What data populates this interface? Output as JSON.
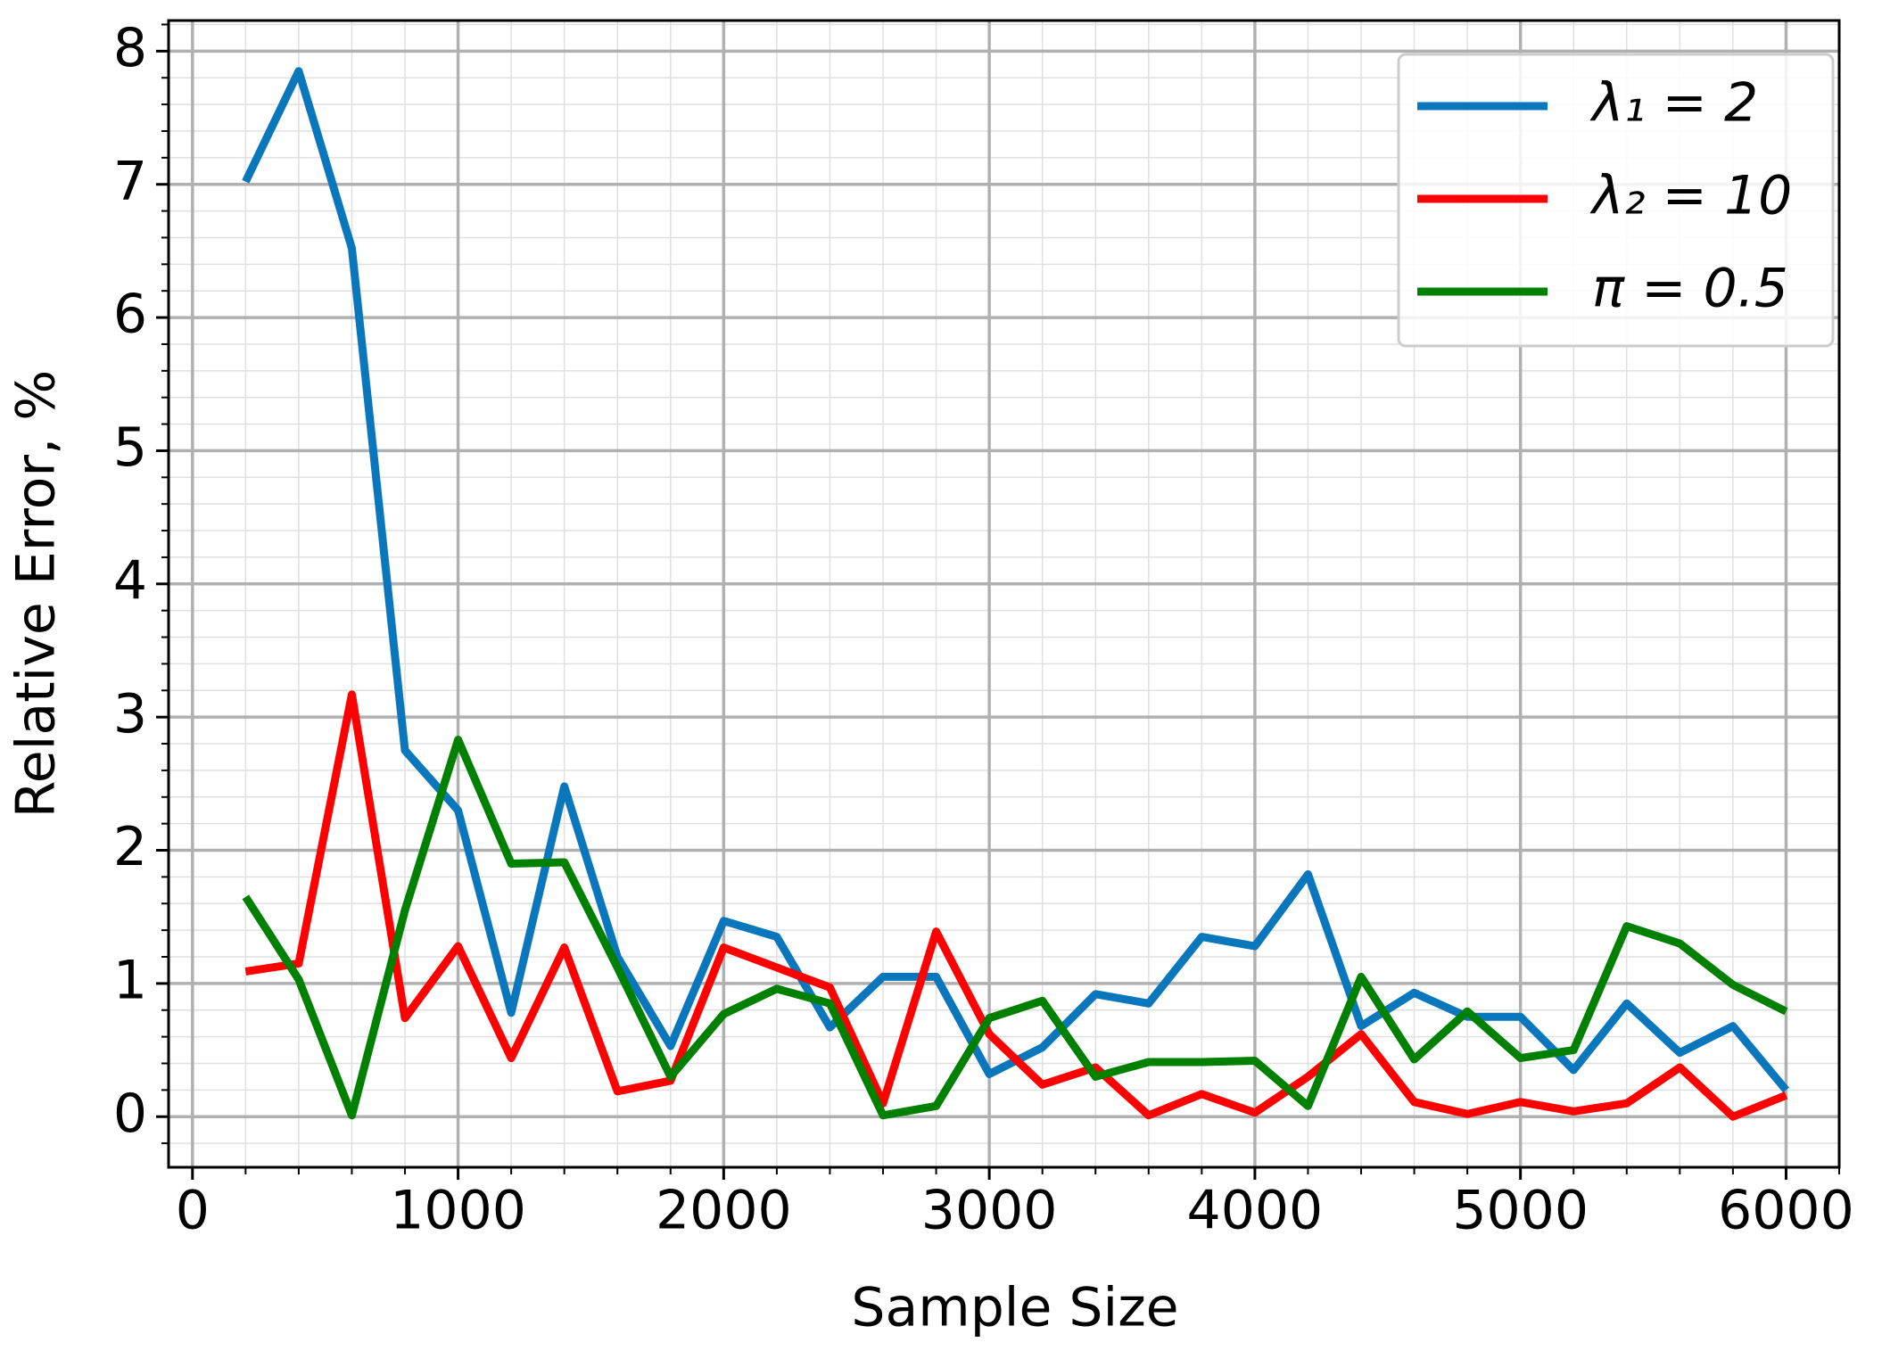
{
  "chart_data": {
    "type": "line",
    "xlabel": "Sample Size",
    "ylabel": "Relative Error, %",
    "x": [
      200,
      400,
      600,
      800,
      1000,
      1200,
      1400,
      1600,
      1800,
      2000,
      2200,
      2400,
      2600,
      2800,
      3000,
      3200,
      3400,
      3600,
      3800,
      4000,
      4200,
      4400,
      4600,
      4800,
      5000,
      5200,
      5400,
      5600,
      5800,
      6000
    ],
    "series": [
      {
        "name": "λ₁ = 2",
        "color": "#0a77bd",
        "values": [
          7.02,
          7.85,
          6.52,
          2.75,
          2.3,
          0.78,
          2.48,
          1.2,
          0.53,
          1.47,
          1.35,
          0.67,
          1.05,
          1.05,
          0.32,
          0.52,
          0.92,
          0.85,
          1.35,
          1.28,
          1.82,
          0.68,
          0.93,
          0.75,
          0.75,
          0.35,
          0.85,
          0.48,
          0.68,
          0.2
        ]
      },
      {
        "name": "λ₂ = 10",
        "color": "#ff0000",
        "values": [
          1.09,
          1.15,
          3.17,
          0.74,
          1.28,
          0.44,
          1.27,
          0.19,
          0.27,
          1.27,
          1.12,
          0.97,
          0.1,
          1.39,
          0.62,
          0.24,
          0.37,
          0.01,
          0.17,
          0.03,
          0.3,
          0.62,
          0.11,
          0.02,
          0.11,
          0.04,
          0.1,
          0.37,
          0.0,
          0.16
        ]
      },
      {
        "name": "π = 0.5",
        "color": "#008000",
        "values": [
          1.65,
          1.03,
          0.01,
          1.55,
          2.83,
          1.9,
          1.91,
          1.12,
          0.3,
          0.77,
          0.96,
          0.85,
          0.01,
          0.08,
          0.74,
          0.87,
          0.3,
          0.41,
          0.41,
          0.42,
          0.08,
          1.05,
          0.43,
          0.79,
          0.44,
          0.5,
          1.43,
          1.3,
          0.99,
          0.79
        ]
      }
    ],
    "xlim": [
      -90,
      6200
    ],
    "ylim": [
      -0.38,
      8.23
    ],
    "xticks": [
      0,
      1000,
      2000,
      3000,
      4000,
      5000,
      6000
    ],
    "yticks": [
      0,
      1,
      2,
      3,
      4,
      5,
      6,
      7,
      8
    ],
    "xminorticks": [
      200,
      400,
      600,
      800,
      1200,
      1400,
      1600,
      1800,
      2200,
      2400,
      2600,
      2800,
      3200,
      3400,
      3600,
      3800,
      4200,
      4400,
      4600,
      4800,
      5200,
      5400,
      5600,
      5800,
      6200
    ],
    "yminorticks": [
      -0.2,
      0.2,
      0.4,
      0.6,
      0.8,
      1.2,
      1.4,
      1.6,
      1.8,
      2.2,
      2.4,
      2.6,
      2.8,
      3.2,
      3.4,
      3.6,
      3.8,
      4.2,
      4.4,
      4.6,
      4.8,
      5.2,
      5.4,
      5.6,
      5.8,
      6.2,
      6.4,
      6.6,
      6.8,
      7.2,
      7.4,
      7.6,
      7.8,
      8.2
    ],
    "grid": true,
    "legend": "upper right"
  }
}
